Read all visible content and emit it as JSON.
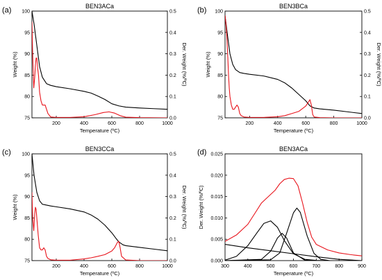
{
  "colors": {
    "weight_series": "#000000",
    "derivative_series": "#e8141c",
    "axis": "#000000"
  },
  "chart_data": [
    {
      "panel_label": "(a)",
      "title": "BEN3ACa",
      "type": "line",
      "grid": false,
      "xlabel": "Temperature (ºC)",
      "ylabel": "Weight (%)",
      "y2label": "Der. Weight (%/ºC)",
      "xlim": [
        25,
        1000
      ],
      "ylim": [
        75,
        100
      ],
      "y2lim": [
        0,
        0.5
      ],
      "xticks": [
        200,
        400,
        600,
        800,
        1000
      ],
      "yticks": [
        75,
        80,
        85,
        90,
        95,
        100
      ],
      "y2ticks": [
        0.0,
        0.1,
        0.2,
        0.3,
        0.4,
        0.5
      ],
      "series": [
        {
          "axis": "left",
          "color": "#000000",
          "x": [
            25,
            40,
            60,
            80,
            100,
            130,
            160,
            200,
            300,
            400,
            450,
            500,
            550,
            600,
            650,
            700,
            800,
            900,
            1000
          ],
          "y": [
            100,
            97,
            92,
            87,
            84.5,
            83,
            82.6,
            82.3,
            81.8,
            81.2,
            80.8,
            80.1,
            79.3,
            78.3,
            77.8,
            77.5,
            77.3,
            77.15,
            77.0
          ]
        },
        {
          "axis": "right",
          "color": "#e8141c",
          "x": [
            25,
            30,
            38,
            45,
            50,
            55,
            60,
            65,
            72,
            80,
            90,
            100,
            110,
            120,
            130,
            140,
            160,
            200,
            300,
            400,
            480,
            540,
            580,
            620,
            660,
            700,
            800,
            1000
          ],
          "y": [
            0.45,
            0.3,
            0.14,
            0.19,
            0.25,
            0.28,
            0.28,
            0.24,
            0.2,
            0.12,
            0.08,
            0.06,
            0.06,
            0.06,
            0.04,
            0.02,
            0.004,
            0.002,
            0.002,
            0.005,
            0.015,
            0.025,
            0.028,
            0.022,
            0.01,
            0.003,
            0.001,
            0.0
          ]
        }
      ]
    },
    {
      "panel_label": "(b)",
      "title": "BEN3BCa",
      "type": "line",
      "grid": false,
      "xlabel": "Temperature (ºC)",
      "ylabel": "Weight (%)",
      "y2label": "Der. Weight (%/ºC)",
      "xlim": [
        25,
        1000
      ],
      "ylim": [
        75,
        100
      ],
      "y2lim": [
        0,
        0.5
      ],
      "xticks": [
        200,
        400,
        600,
        800,
        1000
      ],
      "yticks": [
        75,
        80,
        85,
        90,
        95,
        100
      ],
      "y2ticks": [
        0.0,
        0.1,
        0.2,
        0.3,
        0.4,
        0.5
      ],
      "series": [
        {
          "axis": "left",
          "color": "#000000",
          "x": [
            25,
            40,
            60,
            80,
            100,
            130,
            160,
            200,
            300,
            400,
            450,
            500,
            550,
            600,
            630,
            660,
            700,
            800,
            900,
            1000
          ],
          "y": [
            99,
            95,
            90,
            87.5,
            86.3,
            85.6,
            85.4,
            85.2,
            84.8,
            84.0,
            83.2,
            82.0,
            80.5,
            79.0,
            77.8,
            77.3,
            77.1,
            76.8,
            76.4,
            76.0
          ]
        },
        {
          "axis": "right",
          "color": "#e8141c",
          "x": [
            25,
            30,
            38,
            45,
            50,
            55,
            60,
            70,
            80,
            90,
            100,
            110,
            120,
            130,
            140,
            160,
            200,
            300,
            400,
            450,
            500,
            550,
            600,
            620,
            630,
            640,
            650,
            660,
            700,
            800,
            1000
          ],
          "y": [
            0.48,
            0.45,
            0.38,
            0.28,
            0.2,
            0.14,
            0.1,
            0.06,
            0.04,
            0.04,
            0.05,
            0.06,
            0.05,
            0.02,
            0.01,
            0.004,
            0.002,
            0.002,
            0.005,
            0.01,
            0.02,
            0.03,
            0.055,
            0.075,
            0.085,
            0.06,
            0.015,
            0.004,
            0.001,
            0.0,
            0.0
          ]
        }
      ]
    },
    {
      "panel_label": "(c)",
      "title": "BEN3CCa",
      "type": "line",
      "grid": false,
      "xlabel": "Temperature (ºC)",
      "ylabel": "Weight (%)",
      "y2label": "Der. Weight (%/ºC)",
      "xlim": [
        25,
        1000
      ],
      "ylim": [
        75,
        100
      ],
      "y2lim": [
        0,
        0.5
      ],
      "xticks": [
        200,
        400,
        600,
        800,
        1000
      ],
      "yticks": [
        75,
        80,
        85,
        90,
        95,
        100
      ],
      "y2ticks": [
        0.0,
        0.1,
        0.2,
        0.3,
        0.4,
        0.5
      ],
      "series": [
        {
          "axis": "left",
          "color": "#000000",
          "x": [
            25,
            40,
            60,
            80,
            100,
            130,
            160,
            200,
            300,
            400,
            450,
            500,
            550,
            600,
            630,
            650,
            680,
            700,
            800,
            900,
            1000
          ],
          "y": [
            100,
            95,
            91,
            89,
            88.2,
            88,
            87.8,
            87.6,
            87.1,
            86.4,
            85.7,
            84.7,
            83.3,
            81.5,
            80.2,
            79.4,
            78.7,
            78.5,
            78.1,
            77.7,
            77.3
          ]
        },
        {
          "axis": "right",
          "color": "#e8141c",
          "x": [
            25,
            30,
            38,
            45,
            50,
            55,
            60,
            70,
            80,
            90,
            100,
            110,
            120,
            130,
            140,
            160,
            200,
            300,
            400,
            450,
            500,
            550,
            600,
            620,
            640,
            650,
            660,
            670,
            700,
            800,
            1000
          ],
          "y": [
            0.32,
            0.2,
            0.14,
            0.22,
            0.25,
            0.24,
            0.2,
            0.12,
            0.06,
            0.05,
            0.05,
            0.06,
            0.05,
            0.02,
            0.01,
            0.004,
            0.002,
            0.002,
            0.008,
            0.013,
            0.02,
            0.028,
            0.045,
            0.06,
            0.085,
            0.09,
            0.06,
            0.02,
            0.003,
            0.0,
            0.0
          ]
        }
      ]
    },
    {
      "panel_label": "(d)",
      "title": "BEN3ACa",
      "type": "line",
      "grid": false,
      "xlabel": "Temperature (ºC)",
      "ylabel": "Der. Weight (%/ºC)",
      "xlim": [
        300,
        900
      ],
      "ylim": [
        0,
        0.025
      ],
      "xticks": [
        300,
        400,
        500,
        600,
        700,
        800,
        900
      ],
      "yticks": [
        0.0,
        0.005,
        0.01,
        0.015,
        0.02,
        0.025
      ],
      "ytick_labels": [
        "0.000",
        "0.005",
        "0.010",
        "0.015",
        "0.020",
        "0.025"
      ],
      "series": [
        {
          "axis": "left",
          "color": "#e8141c",
          "x": [
            300,
            350,
            400,
            430,
            460,
            490,
            520,
            540,
            560,
            580,
            600,
            620,
            640,
            660,
            680,
            700,
            750,
            800,
            850,
            900
          ],
          "y": [
            0.0045,
            0.006,
            0.0085,
            0.011,
            0.0135,
            0.015,
            0.0165,
            0.018,
            0.019,
            0.0193,
            0.0192,
            0.0175,
            0.0135,
            0.009,
            0.0055,
            0.0038,
            0.0025,
            0.0018,
            0.0014,
            0.0011
          ]
        },
        {
          "axis": "left",
          "color": "#000000",
          "x": [
            300,
            350,
            400,
            440,
            470,
            500,
            530,
            560,
            600,
            650,
            700,
            750,
            800
          ],
          "y": [
            0.0001,
            0.001,
            0.0035,
            0.0065,
            0.0087,
            0.0093,
            0.0078,
            0.0047,
            0.0016,
            0.0003,
            5e-05,
            0.0,
            0.0
          ]
        },
        {
          "axis": "left",
          "color": "#000000",
          "x": [
            300,
            460,
            500,
            530,
            550,
            570,
            600,
            650,
            700
          ],
          "y": [
            0.0,
            0.0003,
            0.0022,
            0.0053,
            0.0064,
            0.0053,
            0.0018,
            0.0001,
            0.0
          ]
        },
        {
          "axis": "left",
          "color": "#000000",
          "x": [
            300,
            500,
            540,
            570,
            600,
            615,
            630,
            660,
            690,
            720,
            760,
            900
          ],
          "y": [
            0.0,
            0.0002,
            0.0018,
            0.0064,
            0.0112,
            0.0123,
            0.0113,
            0.0058,
            0.0017,
            0.0003,
            0.0,
            0.0
          ]
        },
        {
          "axis": "left",
          "color": "#000000",
          "x": [
            300,
            400,
            500,
            600,
            700,
            800,
            900
          ],
          "y": [
            0.0038,
            0.003,
            0.0023,
            0.0016,
            0.0009,
            0.0003,
            0.0
          ]
        }
      ]
    }
  ]
}
